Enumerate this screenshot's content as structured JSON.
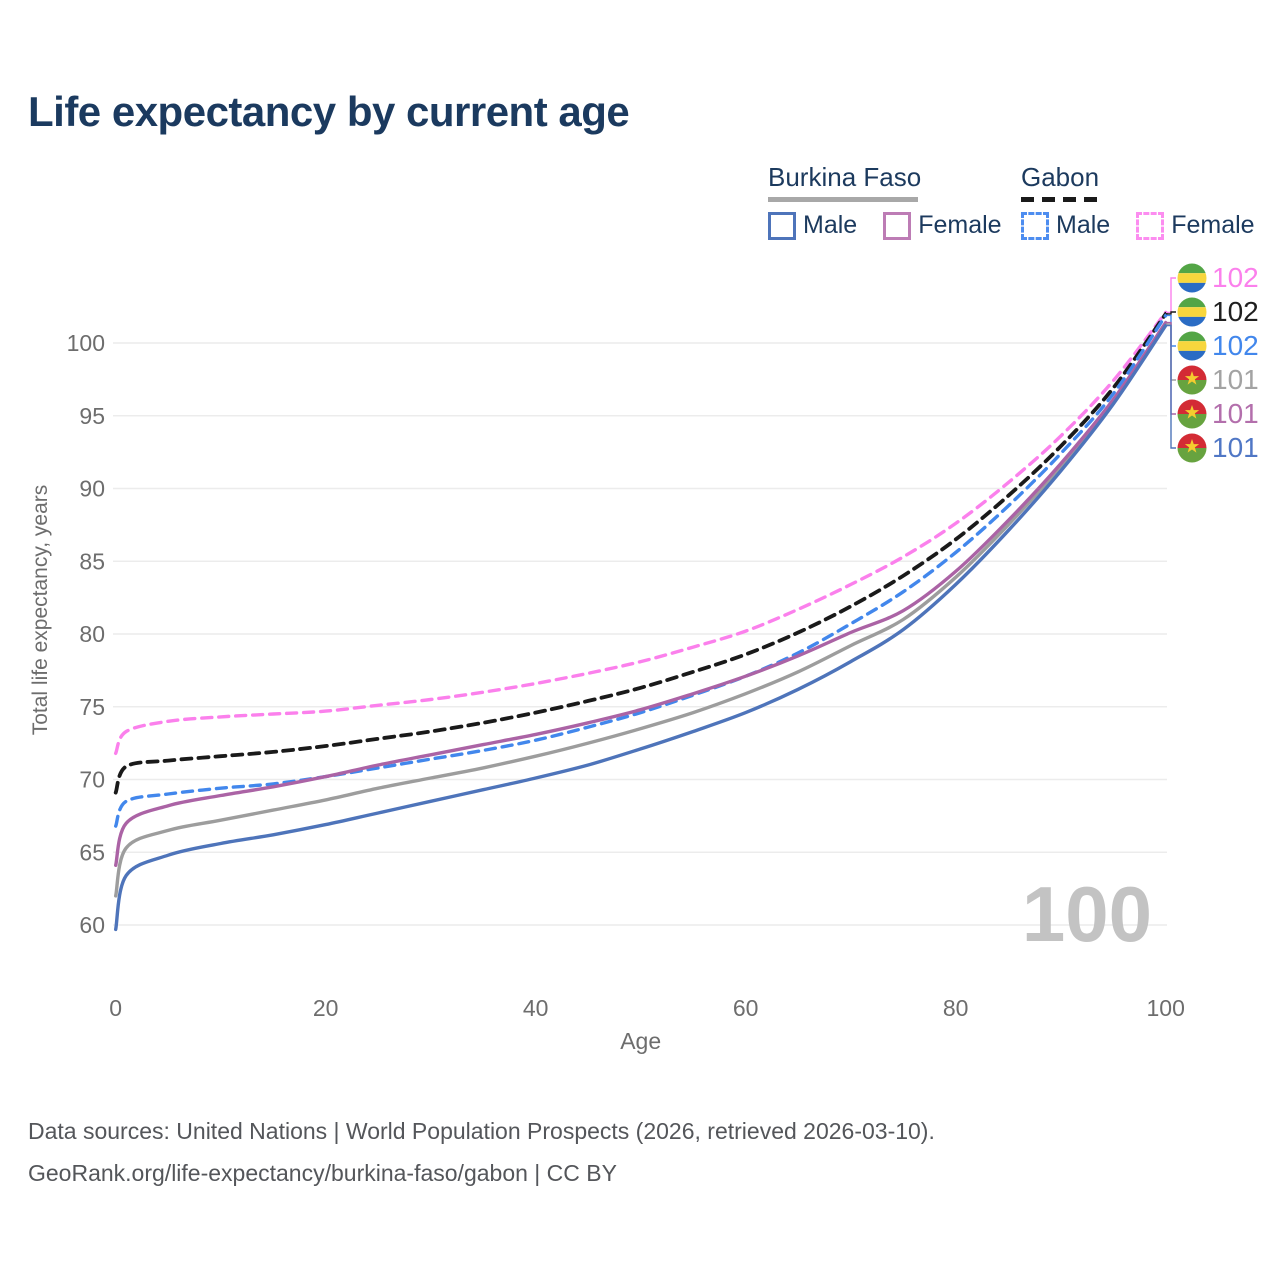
{
  "title": "Life expectancy by current age",
  "legend": {
    "groups": [
      {
        "label": "Burkina Faso",
        "line_style": "solid",
        "underline_color": "#a8a8a8",
        "items": [
          {
            "label": "Male",
            "color": "#4e74ba",
            "dashed": false
          },
          {
            "label": "Female",
            "color": "#bd7cb5",
            "dashed": false
          }
        ]
      },
      {
        "label": "Gabon",
        "line_style": "dashed",
        "underline_color": "#1a1a1a",
        "items": [
          {
            "label": "Male",
            "color": "#4d8df0",
            "dashed": true
          },
          {
            "label": "Female",
            "color": "#fc8df0",
            "dashed": true
          }
        ]
      }
    ]
  },
  "watermark_age": "100",
  "footer": {
    "line1": "Data sources: United Nations | World Population Prospects (2026, retrieved 2026-03-10).",
    "line2": "GeoRank.org/life-expectancy/burkina-faso/gabon | CC BY"
  },
  "chart_data": {
    "type": "line",
    "title": "Life expectancy by current age",
    "xlabel": "Age",
    "ylabel": "Total life expectancy, years",
    "xlim": [
      0,
      100
    ],
    "ylim": [
      58,
      103
    ],
    "x_ticks": [
      0,
      20,
      40,
      60,
      80,
      100
    ],
    "y_ticks": [
      60,
      65,
      70,
      75,
      80,
      85,
      90,
      95,
      100
    ],
    "grid": "horizontal",
    "legend_position": "top-right",
    "x": [
      0,
      1,
      5,
      10,
      15,
      20,
      25,
      30,
      35,
      40,
      45,
      50,
      55,
      60,
      65,
      70,
      75,
      80,
      85,
      90,
      95,
      100
    ],
    "series": [
      {
        "name": "Gabon Female",
        "country": "Gabon",
        "sex": "Female",
        "color": "#fb80ec",
        "dashed": true,
        "flag": "gabon",
        "end_label": "102",
        "end_label_color": "#fb80ec",
        "values": [
          71.8,
          73.3,
          74.0,
          74.3,
          74.5,
          74.7,
          75.1,
          75.5,
          76.0,
          76.6,
          77.3,
          78.1,
          79.1,
          80.2,
          81.7,
          83.4,
          85.3,
          87.6,
          90.4,
          93.6,
          97.4,
          102.1
        ]
      },
      {
        "name": "Gabon",
        "country": "Gabon",
        "sex": "Both",
        "color": "#1a1a1a",
        "dashed": true,
        "flag": "gabon",
        "end_label": "102",
        "end_label_color": "#1f1f1f",
        "values": [
          69.1,
          70.9,
          71.3,
          71.6,
          71.9,
          72.3,
          72.8,
          73.3,
          73.9,
          74.6,
          75.4,
          76.3,
          77.4,
          78.6,
          80.1,
          81.9,
          84.0,
          86.5,
          89.5,
          92.9,
          96.9,
          102.0
        ]
      },
      {
        "name": "Gabon Male",
        "country": "Gabon",
        "sex": "Male",
        "color": "#4287ec",
        "dashed": true,
        "flag": "gabon",
        "end_label": "102",
        "end_label_color": "#4287ec",
        "values": [
          66.8,
          68.5,
          69.0,
          69.4,
          69.7,
          70.2,
          70.8,
          71.4,
          72.0,
          72.7,
          73.6,
          74.6,
          75.8,
          77.1,
          78.7,
          80.7,
          82.9,
          85.6,
          88.8,
          92.4,
          96.5,
          101.9
        ]
      },
      {
        "name": "Burkina Faso",
        "country": "Burkina Faso",
        "sex": "Both",
        "color": "#9d9d9d",
        "dashed": false,
        "flag": "burkina-faso",
        "end_label": "101",
        "end_label_color": "#a3a3a3",
        "values": [
          62.0,
          65.3,
          66.5,
          67.2,
          67.9,
          68.6,
          69.4,
          70.1,
          70.8,
          71.6,
          72.5,
          73.5,
          74.6,
          75.9,
          77.4,
          79.2,
          81.0,
          83.9,
          87.5,
          91.5,
          96.0,
          101.3
        ]
      },
      {
        "name": "Burkina Faso Female",
        "country": "Burkina Faso",
        "sex": "Female",
        "color": "#ab63a5",
        "dashed": false,
        "flag": "burkina-faso",
        "end_label": "101",
        "end_label_color": "#b36fac",
        "values": [
          64.1,
          67.0,
          68.2,
          68.9,
          69.5,
          70.2,
          71.0,
          71.7,
          72.4,
          73.1,
          73.9,
          74.8,
          75.9,
          77.1,
          78.5,
          80.1,
          81.6,
          84.3,
          87.8,
          91.7,
          96.1,
          101.4
        ]
      },
      {
        "name": "Burkina Faso Male",
        "country": "Burkina Faso",
        "sex": "Male",
        "color": "#4e74ba",
        "dashed": false,
        "flag": "burkina-faso",
        "end_label": "101",
        "end_label_color": "#5077c5",
        "values": [
          59.7,
          63.4,
          64.8,
          65.6,
          66.2,
          66.9,
          67.7,
          68.5,
          69.3,
          70.1,
          71.0,
          72.1,
          73.3,
          74.6,
          76.2,
          78.1,
          80.3,
          83.4,
          87.1,
          91.2,
          95.8,
          101.2
        ]
      }
    ]
  }
}
